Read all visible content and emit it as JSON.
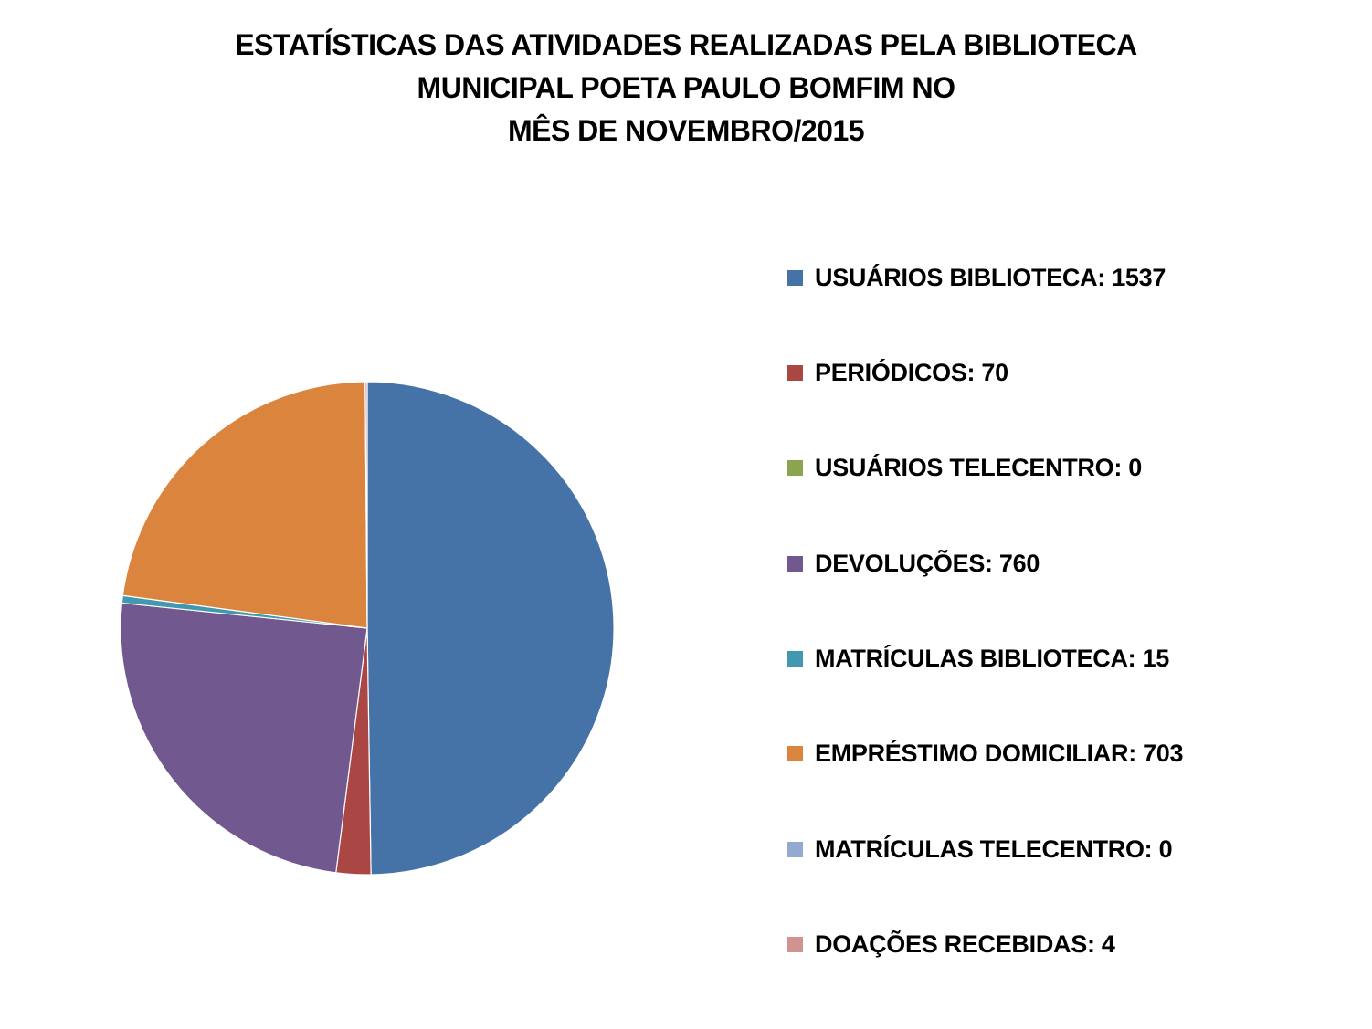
{
  "chart_data": {
    "type": "pie",
    "title_lines": [
      "ESTATÍSTICAS DAS ATIVIDADES REALIZADAS PELA BIBLIOTECA",
      "MUNICIPAL POETA PAULO BOMFIM NO",
      "MÊS DE NOVEMBRO/2015"
    ],
    "legend_position": "right",
    "slices": [
      {
        "label": "USUÁRIOS BIBLIOTECA: 1537",
        "value": 1537,
        "color": "#4572A7"
      },
      {
        "label": "PERIÓDICOS: 70",
        "value": 70,
        "color": "#AA4643"
      },
      {
        "label": "USUÁRIOS TELECENTRO: 0",
        "value": 0,
        "color": "#89A54E"
      },
      {
        "label": "DEVOLUÇÕES: 760",
        "value": 760,
        "color": "#71588F"
      },
      {
        "label": "MATRÍCULAS BIBLIOTECA: 15",
        "value": 15,
        "color": "#4198AF"
      },
      {
        "label": "EMPRÉSTIMO DOMICILIAR: 703",
        "value": 703,
        "color": "#DB843D"
      },
      {
        "label": "MATRÍCULAS TELECENTRO: 0",
        "value": 0,
        "color": "#93A9CF"
      },
      {
        "label": "DOAÇÕES RECEBIDAS: 4",
        "value": 4,
        "color": "#D19392"
      }
    ]
  }
}
